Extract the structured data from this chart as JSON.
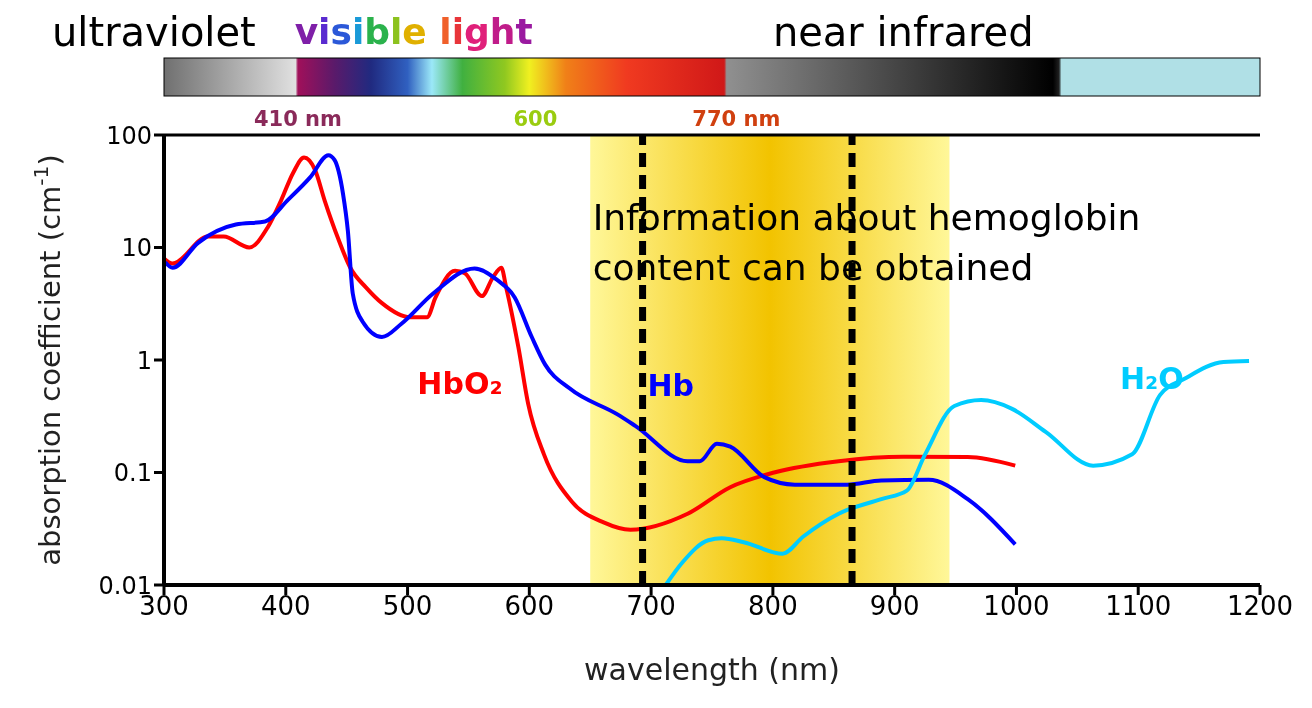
{
  "chart_data": {
    "type": "line",
    "xlabel": "wavelength (nm)",
    "ylabel": "absorption coefficient (cm$^{-1}$)",
    "xlim": [
      300,
      1200
    ],
    "xticks": [
      300,
      400,
      500,
      600,
      700,
      800,
      900,
      1000,
      1100,
      1200
    ],
    "ylim": [
      0.01,
      100
    ],
    "yticks": [
      0.01,
      0.1,
      1,
      10,
      100
    ],
    "log": true,
    "marker": "none",
    "line_style": "solid",
    "series": [
      {
        "name": "HbO₂",
        "color": "#ff0000",
        "x": [
          300,
          307,
          336,
          349,
          370,
          385,
          396,
          406,
          415,
          424,
          432,
          443,
          453,
          466,
          479,
          502,
          516,
          523,
          539,
          547,
          561,
          570,
          577,
          581,
          591,
          599,
          612,
          635,
          661,
          683,
          730,
          765,
          801,
          854,
          907,
          960,
          999
        ],
        "values": [
          8,
          7.2,
          12.5,
          12.5,
          10,
          15,
          26,
          46,
          63,
          49,
          26,
          12,
          6.6,
          4.4,
          3.2,
          2.4,
          2.4,
          3.6,
          6.2,
          5.9,
          3.7,
          5.4,
          6.6,
          4.4,
          1.3,
          0.41,
          0.145,
          0.055,
          0.036,
          0.031,
          0.043,
          0.074,
          0.1,
          0.126,
          0.138,
          0.137,
          0.115
        ]
      },
      {
        "name": "Hb",
        "color": "#0000ff",
        "x": [
          301,
          307,
          328,
          359,
          383,
          401,
          420,
          435,
          440,
          447,
          451,
          455,
          463,
          479,
          495,
          521,
          555,
          573,
          588,
          602,
          613,
          633,
          672,
          687,
          730,
          740,
          754,
          765,
          793,
          818,
          861,
          889,
          928,
          960,
          999
        ],
        "values": [
          7.4,
          6.6,
          11,
          16,
          17,
          26,
          42,
          66,
          60,
          30,
          14,
          3.9,
          2.2,
          1.6,
          2.1,
          3.9,
          6.5,
          5.2,
          3.6,
          1.6,
          0.91,
          0.56,
          0.33,
          0.26,
          0.126,
          0.126,
          0.18,
          0.17,
          0.091,
          0.078,
          0.078,
          0.085,
          0.086,
          0.058,
          0.023
        ]
      },
      {
        "name": "H₂O",
        "color": "#00ccff",
        "x": [
          712,
          726,
          747,
          758,
          776,
          808,
          825,
          854,
          889,
          910,
          925,
          949,
          971,
          996,
          1024,
          1063,
          1095,
          1118,
          1138,
          1170,
          1191
        ],
        "values": [
          0.01,
          0.016,
          0.025,
          0.026,
          0.024,
          0.019,
          0.027,
          0.043,
          0.058,
          0.069,
          0.145,
          0.39,
          0.44,
          0.37,
          0.23,
          0.115,
          0.145,
          0.49,
          0.68,
          0.96,
          0.98
        ]
      }
    ],
    "bands": [
      {
        "axis": "x",
        "from": 650,
        "to": 945,
        "color": "#fff799"
      }
    ],
    "ref_lines": [
      {
        "axis": "x",
        "value": 693,
        "color": "#000000",
        "line_style": "dashed"
      },
      {
        "axis": "x",
        "value": 865,
        "color": "#000000",
        "line_style": "dashed"
      }
    ],
    "annotations": [
      "ultraviolet",
      "visible light",
      "near infrared",
      "410 nm",
      "600",
      "770 nm",
      "Information about hemoglobin content can be obtained"
    ]
  }
}
